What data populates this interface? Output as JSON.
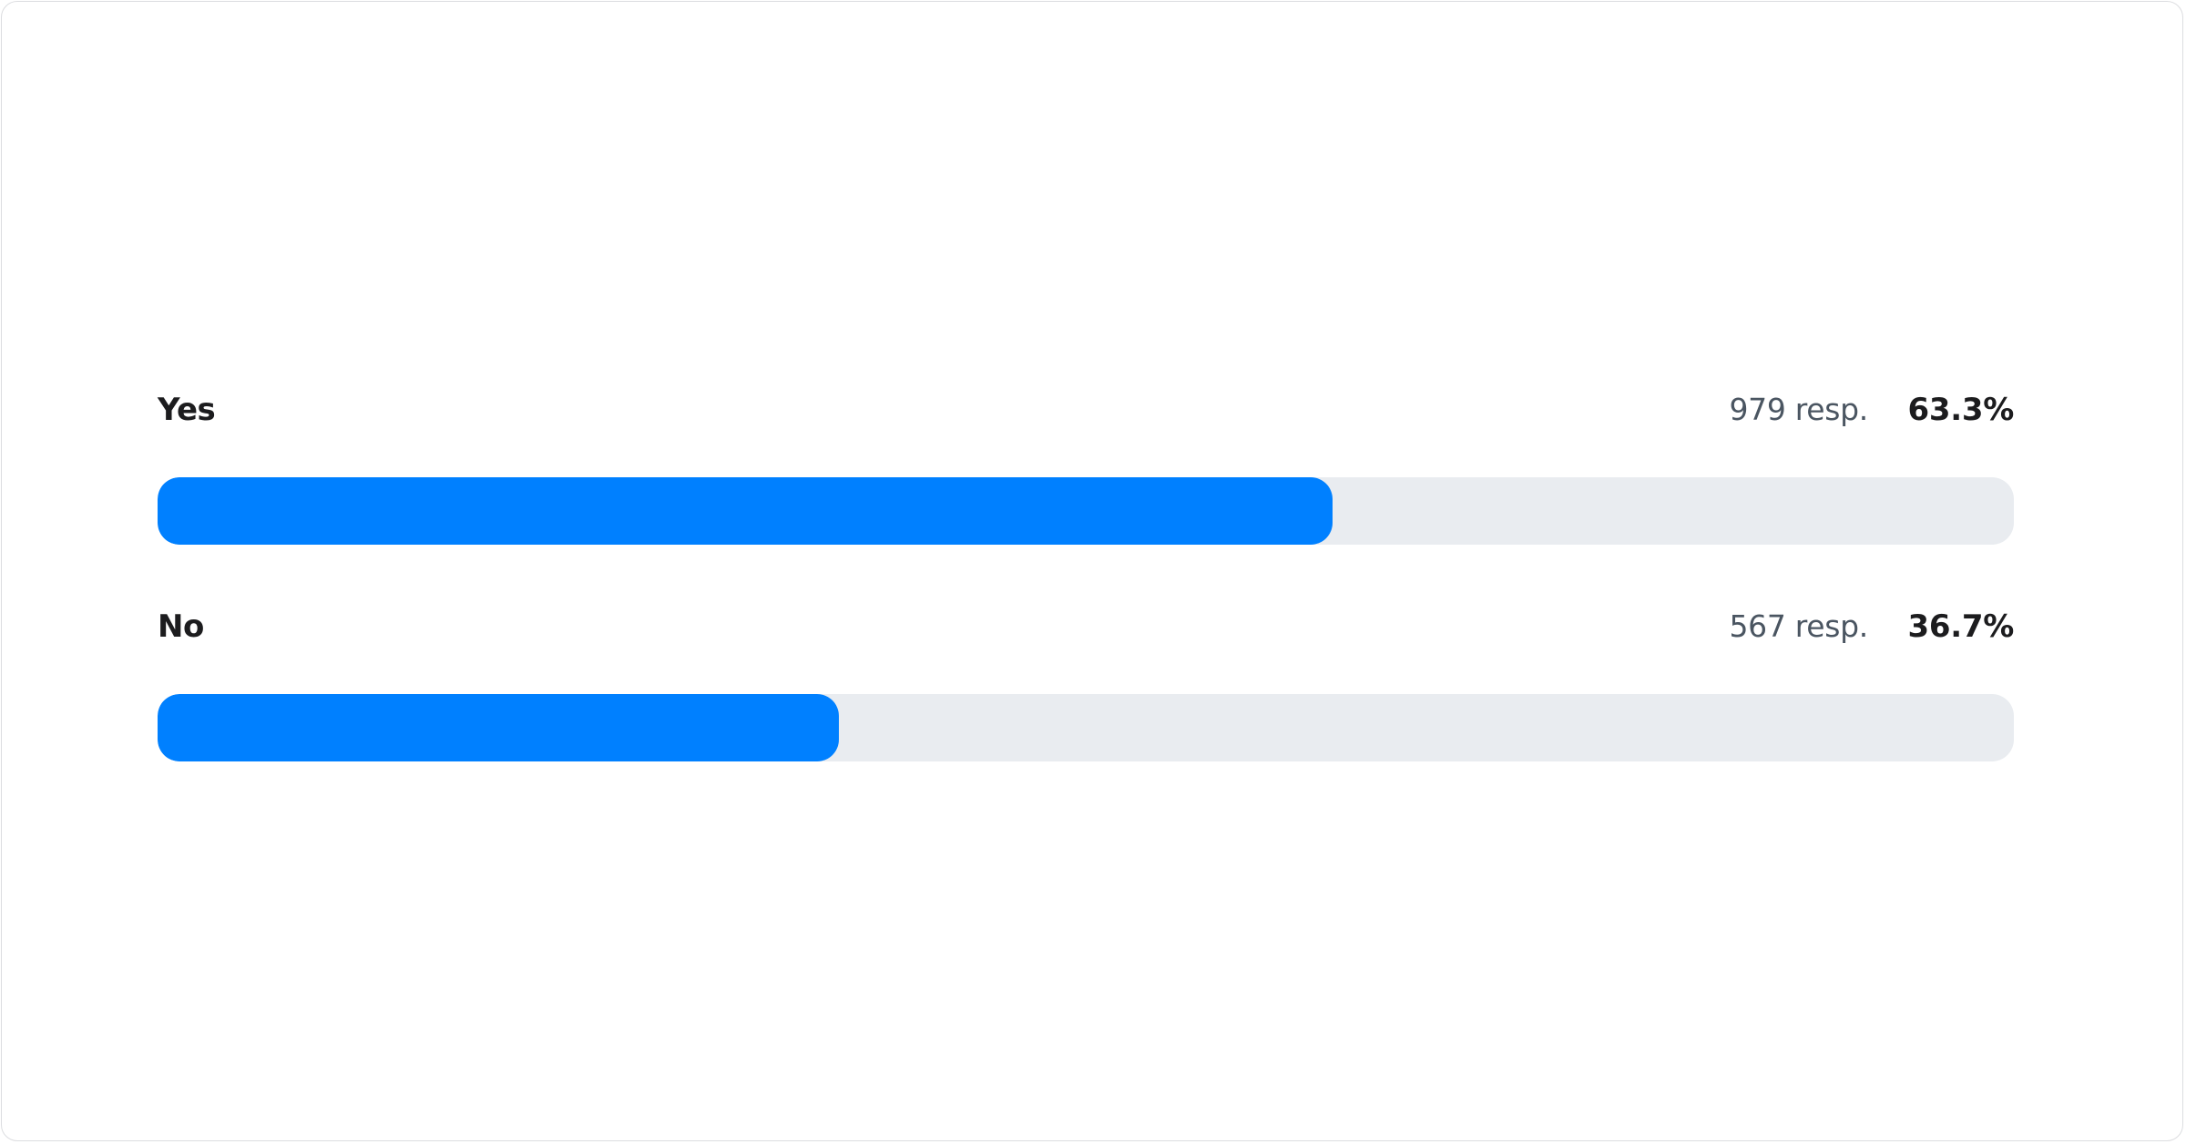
{
  "accent_color": "#0080ff",
  "track_color": "#e9ecf0",
  "options": [
    {
      "label": "Yes",
      "responses": "979 resp.",
      "percent_label": "63.3%",
      "percent": 63.3
    },
    {
      "label": "No",
      "responses": "567 resp.",
      "percent_label": "36.7%",
      "percent": 36.7
    }
  ]
}
